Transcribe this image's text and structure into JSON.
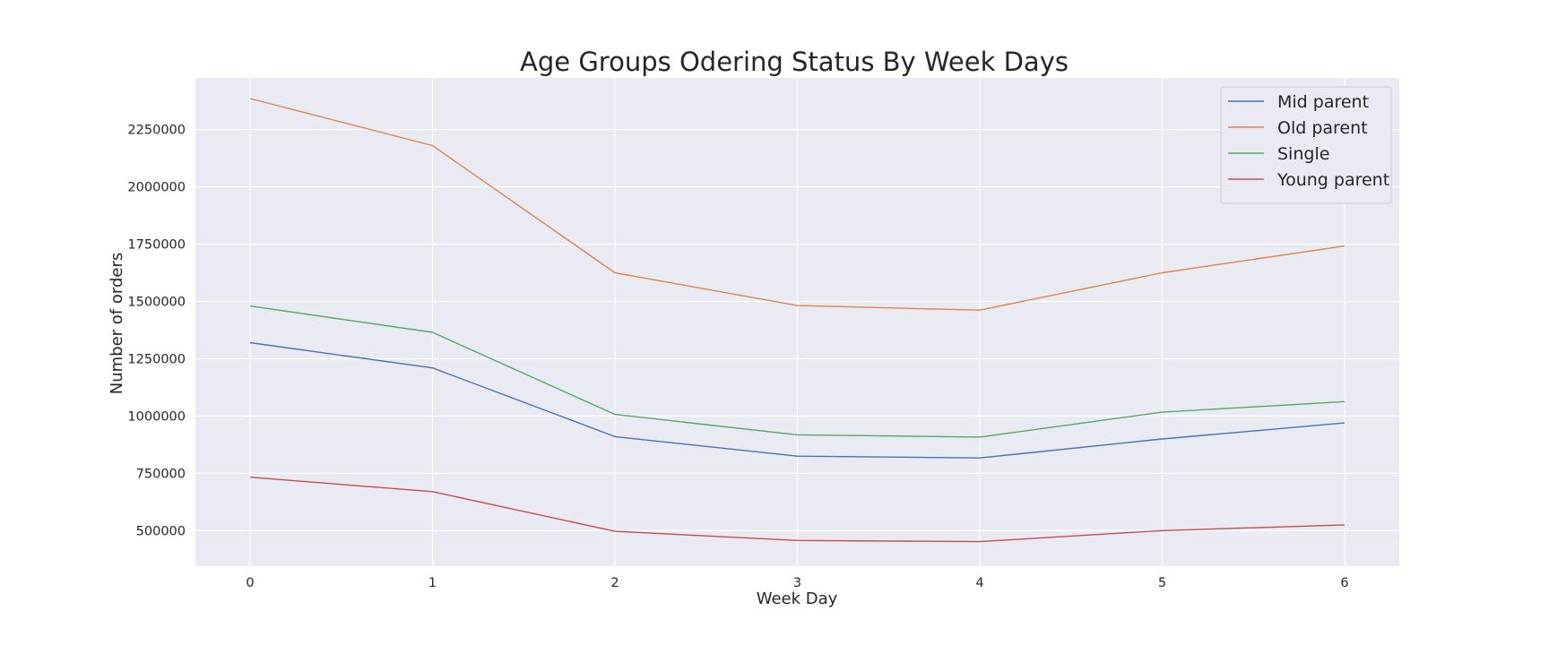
{
  "chart_data": {
    "type": "line",
    "title": "Age Groups Odering Status By Week Days",
    "xlabel": "Week Day",
    "ylabel": "Number of orders",
    "x": [
      0,
      1,
      2,
      3,
      4,
      5,
      6
    ],
    "xticks": [
      "0",
      "1",
      "2",
      "3",
      "4",
      "5",
      "6"
    ],
    "yticks": [
      "500000",
      "750000",
      "1000000",
      "1250000",
      "1500000",
      "1750000",
      "2000000",
      "2250000"
    ],
    "xlim": [
      -0.3,
      6.3
    ],
    "ylim": [
      345000,
      2475000
    ],
    "grid": true,
    "legend_position": "top-right",
    "series": [
      {
        "name": "Mid parent",
        "color": "#4c72b0",
        "values": [
          1320000,
          1210000,
          910000,
          825000,
          817000,
          900000,
          970000
        ]
      },
      {
        "name": "Old parent",
        "color": "#dd8452",
        "values": [
          2385000,
          2180000,
          1625000,
          1482000,
          1462000,
          1625000,
          1742000
        ]
      },
      {
        "name": "Single",
        "color": "#55a868",
        "values": [
          1480000,
          1365000,
          1007000,
          918000,
          908000,
          1017000,
          1063000
        ]
      },
      {
        "name": "Young parent",
        "color": "#c44e52",
        "values": [
          733000,
          670000,
          497000,
          457000,
          452000,
          500000,
          525000
        ]
      }
    ]
  }
}
